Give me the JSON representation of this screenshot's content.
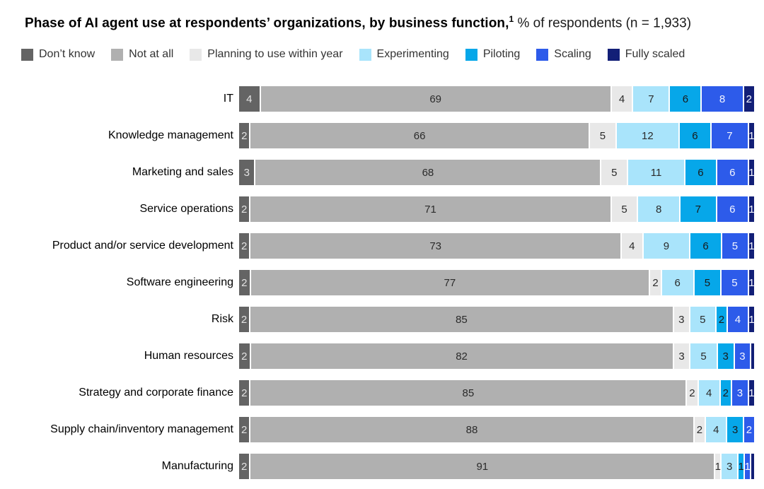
{
  "header": {
    "title_bold": "Phase of AI agent use at respondents’ organizations, by business function,",
    "title_superscript": "1",
    "title_regular": " % of respondents (n = 1,933)"
  },
  "chart_data": {
    "type": "bar",
    "orientation": "horizontal",
    "stacked": true,
    "title": "Phase of AI agent use at respondents’ organizations, by business function",
    "footnote_marker": "1",
    "unit": "% of respondents",
    "sample_size": "n = 1,933",
    "legend_position": "top",
    "axis_range": [
      0,
      100
    ],
    "grid": false,
    "legend": [
      {
        "label": "Don’t know",
        "color": "#646464",
        "value_text_color": "#e3e3e3"
      },
      {
        "label": "Not at all",
        "color": "#b0b0b0",
        "value_text_color": "#2b2b2b"
      },
      {
        "label": "Planning to use within year",
        "color": "#e8e8e8",
        "value_text_color": "#2b2b2b"
      },
      {
        "label": "Experimenting",
        "color": "#a9e4fb",
        "value_text_color": "#2b2b2b"
      },
      {
        "label": "Piloting",
        "color": "#06a7e9",
        "value_text_color": "#1a1a1a"
      },
      {
        "label": "Scaling",
        "color": "#2d5bea",
        "value_text_color": "#f3f5ff"
      },
      {
        "label": "Fully scaled",
        "color": "#121f77",
        "value_text_color": "#f3f5ff"
      }
    ],
    "rows": [
      {
        "label": "IT",
        "values": [
          4,
          69,
          4,
          7,
          6,
          8,
          2
        ],
        "display": [
          "4",
          "69",
          "4",
          "7",
          "6",
          "8",
          "2"
        ]
      },
      {
        "label": "Knowledge management",
        "values": [
          2,
          66,
          5,
          12,
          6,
          7,
          1
        ],
        "display": [
          "2",
          "66",
          "5",
          "12",
          "6",
          "7",
          "1"
        ]
      },
      {
        "label": "Marketing and sales",
        "values": [
          3,
          68,
          5,
          11,
          6,
          6,
          1
        ],
        "display": [
          "3",
          "68",
          "5",
          "11",
          "6",
          "6",
          "1"
        ]
      },
      {
        "label": "Service operations",
        "values": [
          2,
          71,
          5,
          8,
          7,
          6,
          1
        ],
        "display": [
          "2",
          "71",
          "5",
          "8",
          "7",
          "6",
          "1"
        ]
      },
      {
        "label": "Product and/or service development",
        "values": [
          2,
          73,
          4,
          9,
          6,
          5,
          1
        ],
        "display": [
          "2",
          "73",
          "4",
          "9",
          "6",
          "5",
          "1"
        ]
      },
      {
        "label": "Software engineering",
        "values": [
          2,
          77,
          2,
          6,
          5,
          5,
          1
        ],
        "display": [
          "2",
          "77",
          "2",
          "6",
          "5",
          "5",
          "1"
        ]
      },
      {
        "label": "Risk",
        "values": [
          2,
          85,
          3,
          5,
          2,
          4,
          1
        ],
        "display": [
          "2",
          "85",
          "3",
          "5",
          "2",
          "4",
          "1"
        ]
      },
      {
        "label": "Human resources",
        "values": [
          2,
          82,
          3,
          5,
          3,
          3,
          0.5
        ],
        "display": [
          "2",
          "82",
          "3",
          "5",
          "3",
          "3",
          ""
        ]
      },
      {
        "label": "Strategy and corporate finance",
        "values": [
          2,
          85,
          2,
          4,
          2,
          3,
          1
        ],
        "display": [
          "2",
          "85",
          "2",
          "4",
          "2",
          "3",
          "1"
        ]
      },
      {
        "label": "Supply chain/inventory management",
        "values": [
          2,
          88,
          2,
          4,
          3,
          2,
          0
        ],
        "display": [
          "2",
          "88",
          "2",
          "4",
          "3",
          "2",
          ""
        ]
      },
      {
        "label": "Manufacturing",
        "values": [
          2,
          91,
          1,
          3,
          1,
          1,
          0.5
        ],
        "display": [
          "2",
          "91",
          "1",
          "3",
          "1",
          "1",
          ""
        ]
      }
    ]
  }
}
